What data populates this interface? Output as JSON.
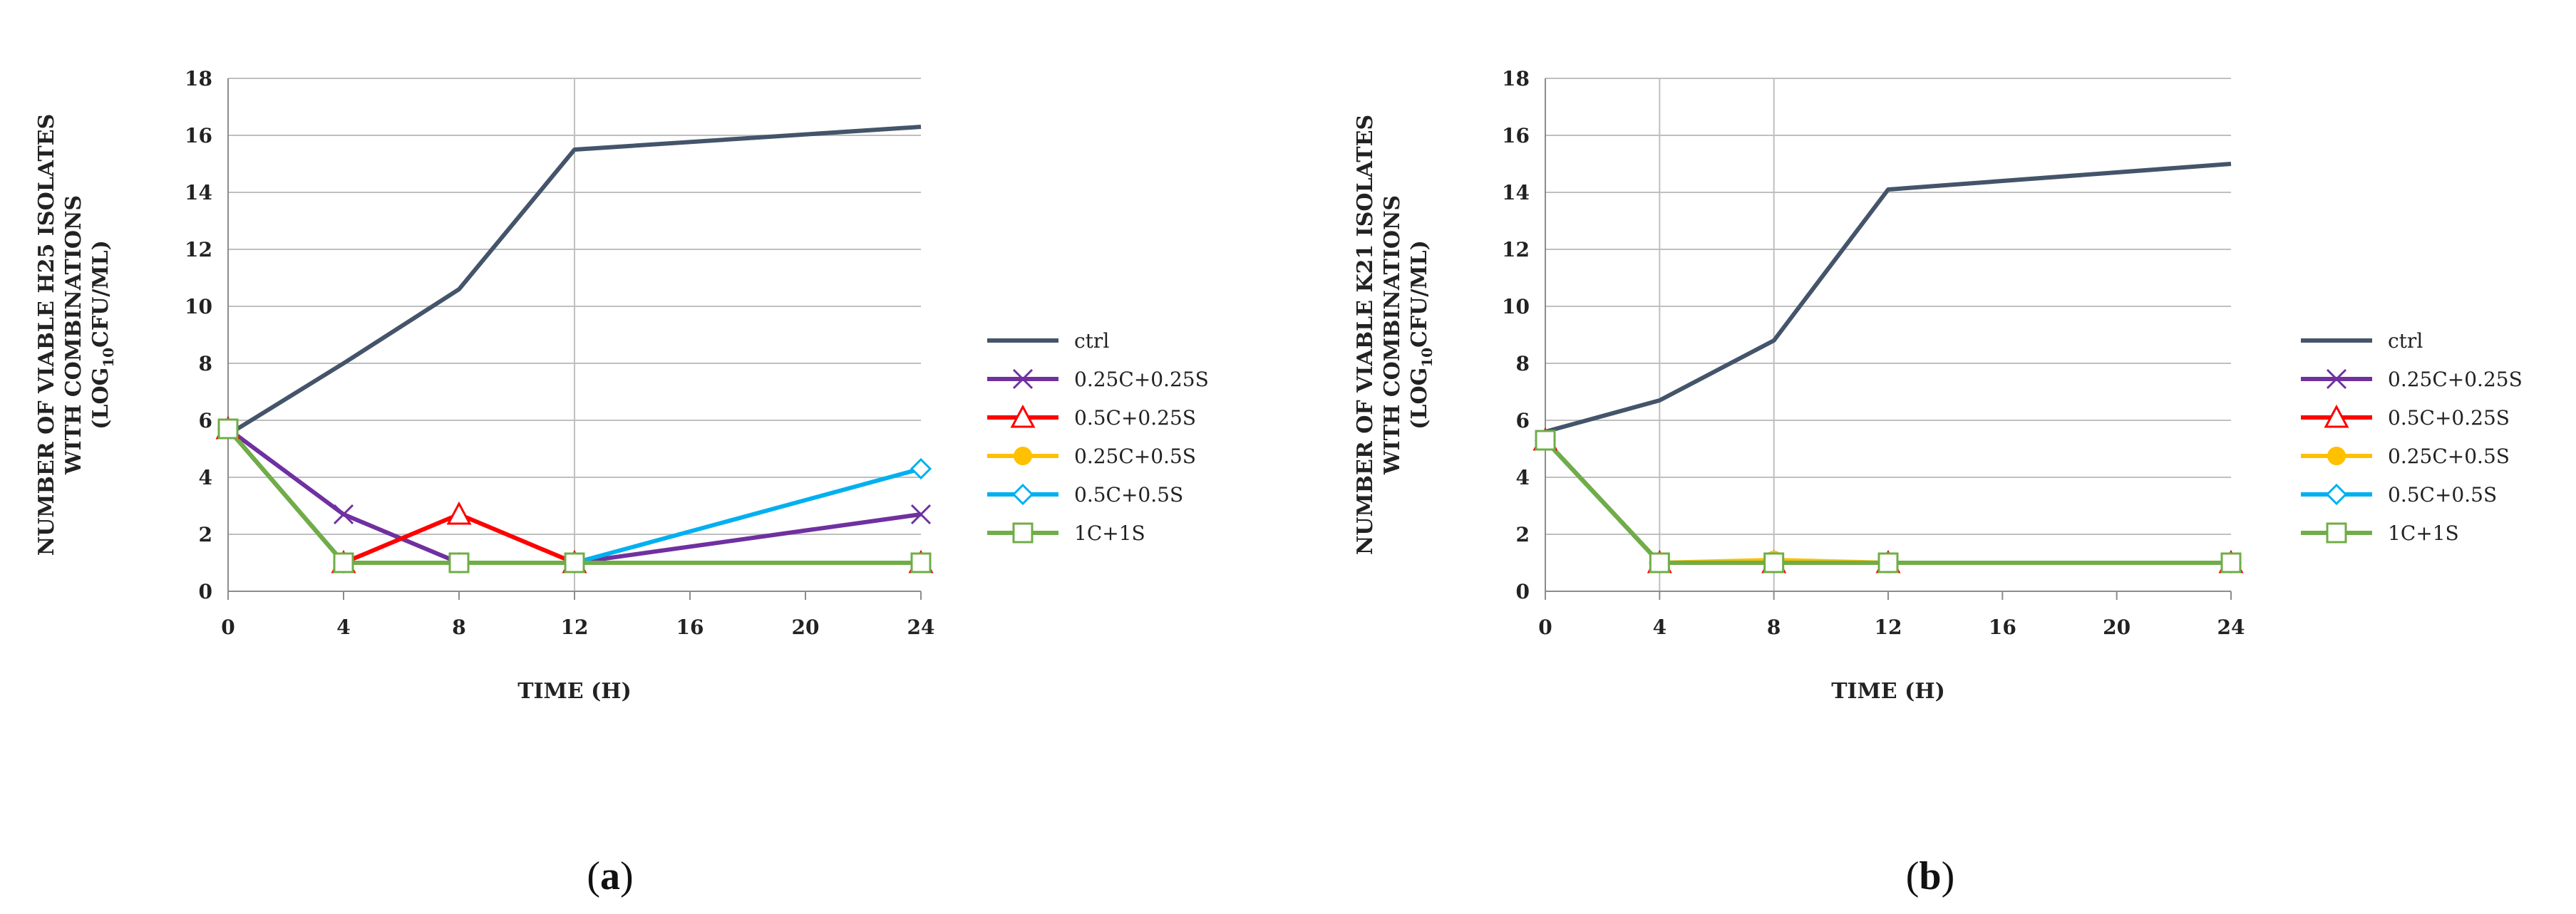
{
  "chart_data": [
    {
      "type": "line",
      "panel_label": "(a)",
      "panel_letter": "a",
      "ylabel_lines": [
        "NUMBER OF VIABLE H25 ISOLATES",
        "WITH COMBINATIONS"
      ],
      "ylabel_unit": {
        "pre": "(LOG",
        "sub": "10",
        "post": "CFU/ML)"
      },
      "xlabel": "TIME (H)",
      "xlim": [
        0,
        24
      ],
      "ylim": [
        0,
        18
      ],
      "xticks": [
        0,
        4,
        8,
        12,
        16,
        20,
        24
      ],
      "yticks": [
        0,
        2,
        4,
        6,
        8,
        10,
        12,
        14,
        16,
        18
      ],
      "vertical_gridlines_at": [
        12
      ],
      "series": [
        {
          "name": "ctrl",
          "color": "#44546a",
          "marker": "none",
          "x": [
            0,
            4,
            8,
            12,
            24
          ],
          "y": [
            5.5,
            8.0,
            10.6,
            15.5,
            16.3
          ]
        },
        {
          "name": "0.25C+0.25S",
          "color": "#7030a0",
          "marker": "x",
          "x": [
            0,
            4,
            8,
            12,
            24
          ],
          "y": [
            5.7,
            2.7,
            1.0,
            1.0,
            2.7
          ]
        },
        {
          "name": "0.5C+0.25S",
          "color": "#ff0000",
          "marker": "triangle",
          "x": [
            0,
            4,
            8,
            12,
            24
          ],
          "y": [
            5.7,
            1.0,
            2.7,
            1.0,
            1.0
          ]
        },
        {
          "name": "0.25C+0.5S",
          "color": "#ffc000",
          "marker": "circle",
          "x": [
            0,
            4,
            8,
            12,
            24
          ],
          "y": [
            5.7,
            1.0,
            1.0,
            1.0,
            1.0
          ]
        },
        {
          "name": "0.5C+0.5S",
          "color": "#00b0f0",
          "marker": "diamond",
          "x": [
            0,
            4,
            8,
            12,
            24
          ],
          "y": [
            5.7,
            1.0,
            1.0,
            1.0,
            4.3
          ]
        },
        {
          "name": "1C+1S",
          "color": "#70ad47",
          "marker": "square",
          "x": [
            0,
            4,
            8,
            12,
            24
          ],
          "y": [
            5.7,
            1.0,
            1.0,
            1.0,
            1.0
          ]
        }
      ]
    },
    {
      "type": "line",
      "panel_label": "(b)",
      "panel_letter": "b",
      "ylabel_lines": [
        "NUMBER OF VIABLE K21 ISOLATES",
        "WITH COMBINATIONS"
      ],
      "ylabel_unit": {
        "pre": "(LOG",
        "sub": "10",
        "post": "CFU/ML)"
      },
      "xlabel": "TIME (H)",
      "xlim": [
        0,
        24
      ],
      "ylim": [
        0,
        18
      ],
      "xticks": [
        0,
        4,
        8,
        12,
        16,
        20,
        24
      ],
      "yticks": [
        0,
        2,
        4,
        6,
        8,
        10,
        12,
        14,
        16,
        18
      ],
      "vertical_gridlines_at": [
        4,
        8
      ],
      "series": [
        {
          "name": "ctrl",
          "color": "#44546a",
          "marker": "none",
          "x": [
            0,
            4,
            8,
            12,
            24
          ],
          "y": [
            5.6,
            6.7,
            8.8,
            14.1,
            15.0
          ]
        },
        {
          "name": "0.25C+0.25S",
          "color": "#7030a0",
          "marker": "x",
          "x": [
            0,
            4,
            8,
            12,
            24
          ],
          "y": [
            5.3,
            1.0,
            1.0,
            1.0,
            1.0
          ]
        },
        {
          "name": "0.5C+0.25S",
          "color": "#ff0000",
          "marker": "triangle",
          "x": [
            0,
            4,
            8,
            12,
            24
          ],
          "y": [
            5.3,
            1.0,
            1.0,
            1.0,
            1.0
          ]
        },
        {
          "name": "0.25C+0.5S",
          "color": "#ffc000",
          "marker": "circle",
          "x": [
            0,
            4,
            8,
            12,
            24
          ],
          "y": [
            5.3,
            1.0,
            1.1,
            1.0,
            1.0
          ]
        },
        {
          "name": "0.5C+0.5S",
          "color": "#00b0f0",
          "marker": "diamond",
          "x": [
            0,
            4,
            8,
            12,
            24
          ],
          "y": [
            5.3,
            1.0,
            1.0,
            1.0,
            1.0
          ]
        },
        {
          "name": "1C+1S",
          "color": "#70ad47",
          "marker": "square",
          "x": [
            0,
            4,
            8,
            12,
            24
          ],
          "y": [
            5.3,
            1.0,
            1.0,
            1.0,
            1.0
          ]
        }
      ]
    }
  ]
}
